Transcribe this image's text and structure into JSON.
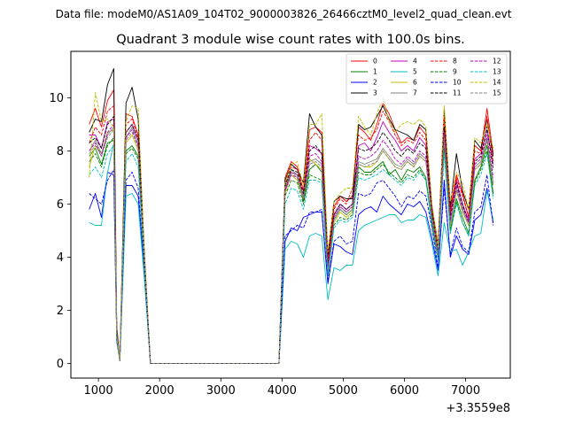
{
  "chart_data": {
    "type": "line",
    "suptitle": "Data file: modeM0/AS1A09_104T02_9000003826_26466cztM0_level2_quad_clean.evt",
    "title": "Quadrant 3 module wise count rates with 100.0s bins.",
    "xlabel": "",
    "ylabel": "",
    "x_offset_label": "+3.3559e8",
    "xlim": [
      550,
      7730
    ],
    "ylim": [
      -0.55,
      11.75
    ],
    "x_ticks": [
      1000,
      2000,
      3000,
      4000,
      5000,
      6000,
      7000
    ],
    "y_ticks": [
      0,
      2,
      4,
      6,
      8,
      10
    ],
    "legend_position": "top-right",
    "x": [
      850,
      950,
      1050,
      1150,
      1250,
      1300,
      1350,
      1450,
      1550,
      1650,
      1750,
      1850,
      1950,
      2050,
      2150,
      2250,
      2350,
      2450,
      2550,
      2650,
      2750,
      2850,
      2950,
      3050,
      3150,
      3250,
      3350,
      3450,
      3550,
      3650,
      3750,
      3850,
      3950,
      4050,
      4150,
      4250,
      4350,
      4450,
      4550,
      4650,
      4750,
      4850,
      4950,
      5050,
      5150,
      5250,
      5350,
      5450,
      5550,
      5650,
      5750,
      5850,
      5950,
      6050,
      6150,
      6250,
      6350,
      6450,
      6550,
      6650,
      6750,
      6850,
      6950,
      7050,
      7150,
      7250,
      7350,
      7450
    ],
    "series": [
      {
        "name": "0",
        "color": "#ff0000",
        "dash": "solid",
        "values": [
          9.0,
          9.6,
          8.9,
          9.9,
          10.3,
          1.2,
          0.1,
          9.4,
          9.3,
          8.6,
          4.0,
          0.0,
          0.0,
          0.0,
          0.0,
          0.0,
          0.0,
          0.0,
          0.0,
          0.0,
          0.0,
          0.0,
          0.0,
          0.0,
          0.0,
          0.0,
          0.0,
          0.0,
          0.0,
          0.0,
          0.0,
          0.0,
          0.0,
          7.0,
          7.6,
          7.4,
          6.5,
          8.8,
          8.9,
          8.7,
          3.9,
          5.9,
          6.3,
          6.1,
          6.3,
          8.9,
          8.7,
          8.4,
          9.0,
          9.8,
          9.4,
          8.8,
          8.3,
          8.5,
          8.4,
          8.9,
          8.6,
          5.9,
          4.5,
          9.6,
          5.8,
          7.1,
          6.4,
          5.5,
          8.2,
          8.0,
          9.6,
          7.9
        ]
      },
      {
        "name": "1",
        "color": "#008000",
        "dash": "solid",
        "values": [
          7.8,
          8.1,
          7.5,
          8.3,
          8.4,
          1.0,
          0.1,
          8.0,
          8.2,
          7.8,
          3.8,
          0.0,
          0.0,
          0.0,
          0.0,
          0.0,
          0.0,
          0.0,
          0.0,
          0.0,
          0.0,
          0.0,
          0.0,
          0.0,
          0.0,
          0.0,
          0.0,
          0.0,
          0.0,
          0.0,
          0.0,
          0.0,
          0.0,
          6.6,
          7.2,
          7.1,
          6.1,
          7.3,
          7.5,
          7.2,
          3.4,
          5.4,
          5.8,
          5.6,
          5.8,
          7.4,
          7.2,
          7.2,
          7.4,
          7.6,
          7.1,
          7.3,
          6.9,
          7.3,
          7.2,
          7.4,
          7.0,
          5.3,
          4.0,
          8.3,
          5.0,
          6.2,
          5.5,
          4.9,
          6.9,
          7.4,
          8.2,
          6.4
        ]
      },
      {
        "name": "2",
        "color": "#0000ff",
        "dash": "solid",
        "values": [
          5.8,
          6.4,
          5.5,
          7.2,
          7.1,
          0.9,
          0.1,
          6.7,
          6.7,
          6.3,
          3.4,
          0.0,
          0.0,
          0.0,
          0.0,
          0.0,
          0.0,
          0.0,
          0.0,
          0.0,
          0.0,
          0.0,
          0.0,
          0.0,
          0.0,
          0.0,
          0.0,
          0.0,
          0.0,
          0.0,
          0.0,
          0.0,
          0.0,
          4.6,
          5.1,
          5.0,
          5.5,
          5.6,
          5.7,
          5.7,
          3.0,
          4.5,
          4.4,
          4.2,
          4.1,
          5.6,
          5.8,
          5.9,
          5.7,
          6.3,
          6.0,
          5.8,
          5.6,
          6.0,
          5.9,
          6.1,
          5.7,
          4.7,
          3.5,
          6.9,
          4.0,
          4.8,
          4.3,
          4.1,
          5.4,
          5.6,
          6.6,
          5.3
        ]
      },
      {
        "name": "3",
        "color": "#000000",
        "dash": "solid",
        "values": [
          8.7,
          9.2,
          9.1,
          10.5,
          11.1,
          1.4,
          0.1,
          9.8,
          10.4,
          9.2,
          4.2,
          0.0,
          0.0,
          0.0,
          0.0,
          0.0,
          0.0,
          0.0,
          0.0,
          0.0,
          0.0,
          0.0,
          0.0,
          0.0,
          0.0,
          0.0,
          0.0,
          0.0,
          0.0,
          0.0,
          0.0,
          0.0,
          0.0,
          6.9,
          7.5,
          7.3,
          6.8,
          9.4,
          8.9,
          8.6,
          4.1,
          6.1,
          6.3,
          6.2,
          6.2,
          9.0,
          8.8,
          8.9,
          9.3,
          9.7,
          9.2,
          8.8,
          8.7,
          8.6,
          8.4,
          9.0,
          8.8,
          5.8,
          4.4,
          9.5,
          5.9,
          7.9,
          6.5,
          5.8,
          8.4,
          8.1,
          9.2,
          7.8
        ]
      },
      {
        "name": "4",
        "color": "#bf00bf",
        "dash": "solid",
        "values": [
          8.6,
          8.6,
          8.1,
          9.1,
          9.2,
          1.1,
          0.1,
          8.7,
          9.0,
          8.4,
          3.9,
          0.0,
          0.0,
          0.0,
          0.0,
          0.0,
          0.0,
          0.0,
          0.0,
          0.0,
          0.0,
          0.0,
          0.0,
          0.0,
          0.0,
          0.0,
          0.0,
          0.0,
          0.0,
          0.0,
          0.0,
          0.0,
          0.0,
          6.5,
          7.2,
          7.1,
          6.3,
          8.2,
          8.1,
          7.9,
          3.7,
          5.6,
          6.0,
          5.8,
          6.0,
          8.2,
          8.3,
          8.0,
          8.5,
          9.1,
          8.7,
          8.4,
          8.0,
          8.2,
          8.0,
          8.5,
          8.2,
          5.6,
          4.2,
          8.9,
          5.6,
          6.9,
          6.0,
          5.4,
          7.7,
          7.9,
          8.8,
          7.5
        ]
      },
      {
        "name": "5",
        "color": "#00bfbf",
        "dash": "solid",
        "values": [
          5.3,
          5.2,
          5.2,
          7.2,
          8.3,
          0.8,
          0.1,
          6.3,
          6.4,
          6.0,
          3.2,
          0.0,
          0.0,
          0.0,
          0.0,
          0.0,
          0.0,
          0.0,
          0.0,
          0.0,
          0.0,
          0.0,
          0.0,
          0.0,
          0.0,
          0.0,
          0.0,
          0.0,
          0.0,
          0.0,
          0.0,
          0.0,
          0.0,
          4.3,
          4.6,
          4.5,
          4.0,
          4.8,
          4.9,
          4.8,
          2.4,
          3.6,
          3.5,
          3.7,
          3.7,
          5.0,
          5.2,
          5.3,
          5.4,
          5.5,
          5.6,
          5.6,
          5.3,
          5.4,
          5.4,
          5.6,
          5.5,
          4.5,
          3.3,
          5.3,
          4.2,
          4.3,
          3.7,
          4.2,
          4.8,
          4.9,
          6.5,
          5.4
        ]
      },
      {
        "name": "6",
        "color": "#bfbf00",
        "dash": "solid",
        "values": [
          7.4,
          8.2,
          7.9,
          8.7,
          8.8,
          1.0,
          0.1,
          8.3,
          8.6,
          8.0,
          3.7,
          0.0,
          0.0,
          0.0,
          0.0,
          0.0,
          0.0,
          0.0,
          0.0,
          0.0,
          0.0,
          0.0,
          0.0,
          0.0,
          0.0,
          0.0,
          0.0,
          0.0,
          0.0,
          0.0,
          0.0,
          0.0,
          0.0,
          6.4,
          7.1,
          6.9,
          6.2,
          7.7,
          7.5,
          7.3,
          3.5,
          5.3,
          5.7,
          5.5,
          5.7,
          7.5,
          7.4,
          7.4,
          7.6,
          8.0,
          7.7,
          7.4,
          7.3,
          7.6,
          7.4,
          7.8,
          7.6,
          5.5,
          4.1,
          8.5,
          5.2,
          6.5,
          5.7,
          5.2,
          7.3,
          7.5,
          8.4,
          6.7
        ]
      },
      {
        "name": "7",
        "color": "#808080",
        "dash": "solid",
        "values": [
          8.0,
          8.4,
          7.9,
          8.6,
          8.9,
          1.1,
          0.1,
          8.5,
          8.9,
          8.2,
          3.8,
          0.0,
          0.0,
          0.0,
          0.0,
          0.0,
          0.0,
          0.0,
          0.0,
          0.0,
          0.0,
          0.0,
          0.0,
          0.0,
          0.0,
          0.0,
          0.0,
          0.0,
          0.0,
          0.0,
          0.0,
          0.0,
          0.0,
          6.7,
          7.3,
          7.1,
          6.3,
          7.6,
          7.7,
          7.5,
          3.6,
          5.5,
          5.9,
          5.7,
          5.9,
          7.6,
          7.5,
          7.6,
          7.7,
          8.1,
          7.8,
          7.5,
          7.4,
          7.7,
          7.5,
          7.9,
          7.7,
          5.6,
          4.2,
          8.6,
          5.3,
          6.6,
          5.8,
          5.3,
          7.4,
          7.6,
          8.5,
          6.8
        ]
      },
      {
        "name": "8",
        "color": "#ff0000",
        "dash": "dashed",
        "values": [
          8.3,
          8.9,
          8.6,
          9.5,
          9.7,
          1.2,
          0.1,
          9.0,
          9.2,
          8.5,
          3.9,
          0.0,
          0.0,
          0.0,
          0.0,
          0.0,
          0.0,
          0.0,
          0.0,
          0.0,
          0.0,
          0.0,
          0.0,
          0.0,
          0.0,
          0.0,
          0.0,
          0.0,
          0.0,
          0.0,
          0.0,
          0.0,
          0.0,
          6.8,
          7.4,
          7.3,
          6.5,
          8.4,
          8.7,
          8.4,
          3.8,
          5.8,
          6.2,
          6.0,
          6.6,
          8.6,
          8.4,
          8.5,
          8.8,
          9.5,
          9.1,
          8.6,
          8.2,
          8.4,
          8.3,
          8.7,
          8.4,
          5.7,
          4.3,
          9.3,
          5.7,
          7.0,
          6.3,
          5.5,
          8.0,
          7.9,
          9.3,
          7.6
        ]
      },
      {
        "name": "9",
        "color": "#008000",
        "dash": "dashed",
        "values": [
          7.6,
          7.9,
          7.4,
          8.2,
          8.5,
          1.0,
          0.1,
          7.9,
          8.1,
          7.7,
          3.7,
          0.0,
          0.0,
          0.0,
          0.0,
          0.0,
          0.0,
          0.0,
          0.0,
          0.0,
          0.0,
          0.0,
          0.0,
          0.0,
          0.0,
          0.0,
          0.0,
          0.0,
          0.0,
          0.0,
          0.0,
          0.0,
          0.0,
          6.3,
          6.9,
          6.8,
          6.0,
          7.1,
          7.0,
          6.9,
          3.3,
          5.2,
          5.5,
          5.4,
          5.6,
          7.2,
          7.1,
          7.1,
          7.3,
          7.5,
          7.2,
          7.0,
          6.8,
          7.1,
          7.0,
          7.3,
          6.9,
          5.2,
          3.9,
          8.1,
          4.9,
          6.1,
          5.3,
          4.8,
          6.8,
          7.3,
          8.0,
          6.3
        ]
      },
      {
        "name": "10",
        "color": "#0000ff",
        "dash": "dashed",
        "values": [
          6.4,
          6.2,
          6.0,
          6.9,
          7.3,
          0.9,
          0.1,
          6.9,
          7.2,
          6.6,
          3.5,
          0.0,
          0.0,
          0.0,
          0.0,
          0.0,
          0.0,
          0.0,
          0.0,
          0.0,
          0.0,
          0.0,
          0.0,
          0.0,
          0.0,
          0.0,
          0.0,
          0.0,
          0.0,
          0.0,
          0.0,
          0.0,
          0.0,
          4.8,
          5.0,
          5.2,
          5.1,
          5.7,
          5.7,
          5.8,
          3.1,
          4.6,
          4.8,
          4.5,
          4.6,
          6.4,
          6.3,
          6.4,
          6.8,
          6.9,
          6.6,
          6.3,
          5.9,
          6.3,
          6.2,
          6.5,
          6.3,
          5.1,
          3.6,
          6.6,
          4.1,
          5.1,
          4.4,
          4.2,
          5.7,
          5.9,
          7.1,
          5.2
        ]
      },
      {
        "name": "11",
        "color": "#000000",
        "dash": "dashed",
        "values": [
          8.3,
          8.5,
          8.1,
          9.0,
          9.3,
          1.1,
          0.1,
          8.7,
          9.0,
          8.4,
          3.9,
          0.0,
          0.0,
          0.0,
          0.0,
          0.0,
          0.0,
          0.0,
          0.0,
          0.0,
          0.0,
          0.0,
          0.0,
          0.0,
          0.0,
          0.0,
          0.0,
          0.0,
          0.0,
          0.0,
          0.0,
          0.0,
          0.0,
          6.7,
          7.3,
          7.2,
          6.4,
          8.0,
          8.2,
          7.9,
          3.7,
          5.6,
          6.0,
          5.8,
          6.0,
          8.1,
          8.0,
          8.1,
          8.3,
          8.7,
          8.4,
          8.0,
          7.8,
          8.1,
          7.9,
          8.3,
          8.1,
          5.6,
          4.2,
          8.9,
          5.5,
          6.8,
          6.0,
          5.3,
          7.6,
          7.8,
          8.9,
          7.3
        ]
      },
      {
        "name": "12",
        "color": "#bf00bf",
        "dash": "dashed",
        "values": [
          8.0,
          8.3,
          7.8,
          8.7,
          9.0,
          1.1,
          0.1,
          8.5,
          8.8,
          8.2,
          3.8,
          0.0,
          0.0,
          0.0,
          0.0,
          0.0,
          0.0,
          0.0,
          0.0,
          0.0,
          0.0,
          0.0,
          0.0,
          0.0,
          0.0,
          0.0,
          0.0,
          0.0,
          0.0,
          0.0,
          0.0,
          0.0,
          0.0,
          6.5,
          7.1,
          7.0,
          6.2,
          7.8,
          7.9,
          7.6,
          3.6,
          5.5,
          5.9,
          5.7,
          5.9,
          7.8,
          7.7,
          7.8,
          8.0,
          8.4,
          8.1,
          7.7,
          7.5,
          7.8,
          7.6,
          8.0,
          7.8,
          5.5,
          4.1,
          8.7,
          5.4,
          6.7,
          5.9,
          5.3,
          7.5,
          7.7,
          8.6,
          7.0
        ]
      },
      {
        "name": "13",
        "color": "#00bfbf",
        "dash": "dashed",
        "values": [
          7.1,
          7.4,
          7.0,
          7.9,
          8.2,
          1.0,
          0.1,
          7.6,
          7.9,
          7.4,
          3.6,
          0.0,
          0.0,
          0.0,
          0.0,
          0.0,
          0.0,
          0.0,
          0.0,
          0.0,
          0.0,
          0.0,
          0.0,
          0.0,
          0.0,
          0.0,
          0.0,
          0.0,
          0.0,
          0.0,
          0.0,
          0.0,
          0.0,
          6.0,
          6.6,
          6.5,
          5.8,
          6.9,
          6.9,
          6.8,
          3.3,
          5.1,
          5.4,
          5.3,
          5.5,
          7.0,
          6.9,
          7.0,
          7.1,
          7.3,
          7.1,
          6.9,
          6.7,
          7.0,
          6.9,
          7.2,
          6.9,
          5.2,
          3.9,
          7.9,
          4.9,
          6.0,
          5.3,
          4.8,
          6.7,
          7.1,
          7.9,
          6.2
        ]
      },
      {
        "name": "14",
        "color": "#bfbf00",
        "dash": "dashed",
        "values": [
          7.0,
          10.2,
          9.1,
          9.2,
          8.9,
          1.0,
          0.1,
          9.1,
          9.7,
          9.6,
          4.1,
          0.0,
          0.0,
          0.0,
          0.0,
          0.0,
          0.0,
          0.0,
          0.0,
          0.0,
          0.0,
          0.0,
          0.0,
          0.0,
          0.0,
          0.0,
          0.0,
          0.0,
          0.0,
          0.0,
          0.0,
          0.0,
          0.0,
          6.8,
          7.5,
          7.6,
          6.7,
          9.0,
          9.0,
          9.4,
          4.2,
          6.1,
          6.4,
          6.6,
          6.6,
          9.3,
          8.9,
          8.6,
          9.4,
          10.0,
          9.1,
          8.7,
          9.0,
          9.1,
          9.0,
          9.2,
          8.9,
          6.0,
          4.4,
          9.7,
          6.1,
          7.2,
          6.8,
          5.8,
          8.5,
          8.3,
          9.0,
          8.1
        ]
      },
      {
        "name": "15",
        "color": "#808080",
        "dash": "dashed",
        "values": [
          7.9,
          8.2,
          7.8,
          8.5,
          8.8,
          1.1,
          0.1,
          8.4,
          8.7,
          8.1,
          3.8,
          0.0,
          0.0,
          0.0,
          0.0,
          0.0,
          0.0,
          0.0,
          0.0,
          0.0,
          0.0,
          0.0,
          0.0,
          0.0,
          0.0,
          0.0,
          0.0,
          0.0,
          0.0,
          0.0,
          0.0,
          0.0,
          0.0,
          6.6,
          7.2,
          7.0,
          6.2,
          7.5,
          7.6,
          7.4,
          3.5,
          5.4,
          5.8,
          5.6,
          5.8,
          7.5,
          7.4,
          7.5,
          7.6,
          8.0,
          7.7,
          7.4,
          7.3,
          7.6,
          7.4,
          7.8,
          7.6,
          5.5,
          4.1,
          8.5,
          5.2,
          6.5,
          5.7,
          5.2,
          7.3,
          7.5,
          8.4,
          6.7
        ]
      }
    ]
  }
}
